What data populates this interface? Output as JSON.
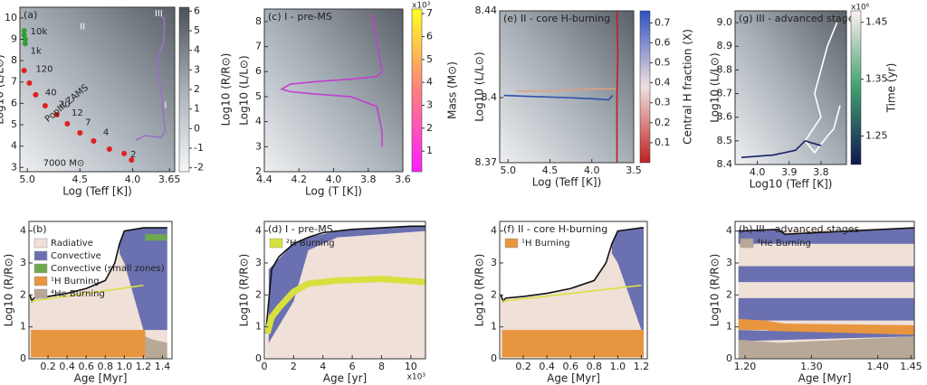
{
  "chart_data": [
    {
      "type": "line",
      "title": "(a)",
      "xlabel": "Log (Teff [K])",
      "ylabel": "Log10 (L/L⊙)",
      "xlim": [
        5.07,
        3.6
      ],
      "ylim": [
        2.8,
        10.5
      ],
      "xticks": [
        {
          "value": 5,
          "label": "5.0"
        },
        4.5,
        {
          "value": 4,
          "label": "4.0"
        },
        3.65
      ],
      "yticks": [
        3,
        4,
        5,
        6,
        7,
        8,
        9,
        10
      ],
      "colorbar": {
        "label": "Log10 (R/R⊙)",
        "lim": [
          -2.2,
          6.2
        ],
        "ticks": [
          -2,
          -1,
          0,
          1,
          2,
          3,
          4,
          5,
          6
        ],
        "colors": [
          "#f4f6f8",
          "#a8b0b8",
          "#4a5058"
        ]
      },
      "annotations": [
        "10k",
        "1k",
        "120",
        "40",
        "20",
        "12",
        "7",
        "4",
        "2",
        "PopIII ZAMS",
        "7000 M⊙",
        "I",
        "II",
        "III"
      ],
      "series": [
        {
          "kind": "line",
          "color": "#9a72c8",
          "x": [
            3.97,
            3.88,
            3.73,
            3.69,
            3.71,
            3.73,
            3.77,
            3.75,
            3.7,
            3.7,
            3.73
          ],
          "y": [
            4.28,
            4.49,
            4.41,
            4.7,
            5.55,
            6.61,
            7.67,
            8.3,
            8.93,
            9.99,
            10.08
          ]
        },
        {
          "kind": "points",
          "color": "#e02020",
          "x": [
            5.03,
            4.98,
            4.92,
            4.83,
            4.72,
            4.62,
            4.5,
            4.37,
            4.22,
            4.08,
            4.01
          ],
          "y": [
            7.54,
            6.95,
            6.4,
            5.89,
            5.47,
            5.04,
            4.62,
            4.24,
            3.86,
            3.65,
            3.35
          ]
        },
        {
          "kind": "points",
          "color": "#30a030",
          "x": [
            5.03,
            5.03,
            5.02,
            5.02
          ],
          "y": [
            9.4,
            9.2,
            9.0,
            8.8
          ]
        }
      ]
    },
    {
      "type": "line",
      "title": "(c) I - pre-MS",
      "xlabel": "Log (T [K])",
      "ylabel": "Log10 (L/L⊙)",
      "xlim": [
        4.4,
        3.6
      ],
      "ylim": [
        2,
        8.5
      ],
      "xticks": [
        4.4,
        4.2,
        {
          "value": 4,
          "label": "4.0"
        },
        3.8,
        3.6
      ],
      "yticks": [
        2,
        3,
        4,
        5,
        6,
        7,
        8
      ],
      "colorbar": {
        "label": "Mass (M⊙)",
        "multiplier": "x10³",
        "lim": [
          0.1,
          7.2
        ],
        "ticks": [
          1,
          2,
          3,
          4,
          5,
          6,
          7
        ],
        "colors": [
          "#ff20ff",
          "#ff8080",
          "#ffff20"
        ]
      },
      "series": [
        {
          "kind": "line",
          "color": "#c040d0",
          "x": [
            3.72,
            3.72,
            3.75,
            3.9,
            4.1,
            4.25,
            4.3,
            4.25,
            4.1,
            3.9,
            3.75,
            3.72,
            3.78
          ],
          "y": [
            3.0,
            3.6,
            4.6,
            5.0,
            5.1,
            5.2,
            5.3,
            5.5,
            5.6,
            5.7,
            5.8,
            6.0,
            8.3
          ]
        }
      ]
    },
    {
      "type": "line",
      "title": "(e) II - core H-burning",
      "xlabel": "Log (Teff [K])",
      "ylabel": "Log10 (L/L⊙)",
      "xlim": [
        5.1,
        3.5
      ],
      "ylim": [
        8.37,
        8.44
      ],
      "xticks": [
        {
          "value": 5,
          "label": "5.0"
        },
        4.5,
        {
          "value": 4,
          "label": "4.0"
        },
        3.5
      ],
      "yticks": [
        8.37,
        8.4,
        8.44
      ],
      "colorbar": {
        "label": "Central H fraction (X)",
        "lim": [
          0,
          0.76
        ],
        "ticks": [
          0.1,
          0.2,
          0.3,
          0.4,
          0.5,
          0.6,
          0.7
        ],
        "colors": [
          "#c02020",
          "#f0e0e0",
          "#3050c0"
        ]
      },
      "series": [
        {
          "kind": "line",
          "color": "#3050b0",
          "x": [
            5.05,
            4.7,
            4.3,
            4.0,
            3.8,
            3.75
          ],
          "y": [
            8.401,
            8.4005,
            8.4,
            8.3995,
            8.399,
            8.401
          ]
        },
        {
          "kind": "line",
          "color": "#e0a080",
          "x": [
            4.9,
            4.5,
            4.0,
            3.72
          ],
          "y": [
            8.403,
            8.403,
            8.404,
            8.404
          ]
        },
        {
          "kind": "line",
          "color": "#c02020",
          "x": [
            3.7,
            3.7,
            3.69,
            3.7
          ],
          "y": [
            8.37,
            8.4,
            8.42,
            8.44
          ]
        }
      ]
    },
    {
      "type": "line",
      "title": "(g) III - advanced stages",
      "xlabel": "Log10 (Teff [K])",
      "ylabel": "Log10 (L/L⊙)",
      "xlim": [
        4.07,
        3.72
      ],
      "ylim": [
        8.4,
        9.05
      ],
      "xticks": [
        {
          "value": 4,
          "label": "4.0"
        },
        3.9,
        3.8
      ],
      "yticks": [
        8.4,
        8.5,
        8.6,
        8.7,
        8.8,
        8.9,
        {
          "value": 9,
          "label": "9.0"
        }
      ],
      "colorbar": {
        "label": "Time (yr)",
        "multiplier": "x10⁶",
        "lim": [
          1.2,
          1.47
        ],
        "ticks": [
          1.25,
          1.35,
          1.45
        ],
        "colors": [
          "#101850",
          "#40a070",
          "#fff0f0"
        ]
      },
      "series": [
        {
          "kind": "line",
          "color": "#ffffff",
          "x": [
            3.75,
            3.78,
            3.8,
            3.82,
            3.8,
            3.85,
            3.82,
            3.78,
            3.76,
            3.74
          ],
          "y": [
            9.0,
            8.9,
            8.8,
            8.7,
            8.6,
            8.5,
            8.45,
            8.52,
            8.55,
            8.65
          ]
        },
        {
          "kind": "line",
          "color": "#182068",
          "x": [
            4.05,
            3.95,
            3.88,
            3.85,
            3.8
          ],
          "y": [
            8.43,
            8.44,
            8.46,
            8.5,
            8.48
          ]
        }
      ]
    },
    {
      "type": "line",
      "title": "(b)",
      "xlabel": "Age [Myr]",
      "ylabel": "Log10 (R/R⊙)",
      "xlim": [
        0,
        1.5
      ],
      "ylim": [
        0,
        4.3
      ],
      "xticks": [
        0.2,
        0.4,
        0.6,
        0.8,
        {
          "value": 1,
          "label": "1.0"
        },
        1.2,
        1.4
      ],
      "yticks": [
        0,
        1,
        2,
        3,
        4
      ],
      "series": [
        {
          "kind": "area",
          "name": "Radiative",
          "color": "#efe0d8",
          "x": [
            0.01,
            0.03,
            0.05,
            0.2,
            0.4,
            0.6,
            0.8,
            0.9,
            0.95,
            1.0,
            1.2,
            1.25,
            1.4,
            1.45
          ],
          "y": [
            2.0,
            1.8,
            1.9,
            1.95,
            2.05,
            2.2,
            2.45,
            3.0,
            3.6,
            4.0,
            4.1,
            4.1,
            4.1,
            4.1
          ],
          "y0": [
            0,
            0,
            0,
            0,
            0,
            0,
            0,
            0,
            0,
            0,
            0,
            0,
            0,
            0
          ]
        },
        {
          "kind": "area",
          "name": "Convective",
          "color": "#6a70b0",
          "x": [
            0.95,
            1.0,
            1.2,
            1.45
          ],
          "y": [
            3.6,
            4.0,
            4.1,
            4.1
          ],
          "y0": [
            3.3,
            3.0,
            0.9,
            0.9
          ]
        },
        {
          "kind": "area",
          "name": "Convective (small zones)",
          "color": "#70a850",
          "x": [
            1.22,
            1.3,
            1.45
          ],
          "y": [
            3.9,
            3.9,
            3.9
          ],
          "y0": [
            3.7,
            3.7,
            3.7
          ]
        },
        {
          "kind": "area",
          "name": "¹H Burning",
          "color": "#e89540",
          "x": [
            0.02,
            1.22
          ],
          "y": [
            0.9,
            0.9
          ],
          "y0": [
            0.05,
            0.05
          ]
        },
        {
          "kind": "area",
          "name": "⁴He Burning",
          "color": "#b8a898",
          "x": [
            1.22,
            1.3,
            1.45
          ],
          "y": [
            0.7,
            0.6,
            0.5
          ],
          "y0": [
            0,
            0,
            0
          ]
        },
        {
          "kind": "line",
          "color": "#111111",
          "x": [
            0.01,
            0.03,
            0.05,
            0.2,
            0.4,
            0.6,
            0.8,
            0.9,
            0.95,
            1.0,
            1.2,
            1.25,
            1.4,
            1.45
          ],
          "y": [
            2.0,
            1.8,
            1.9,
            1.95,
            2.05,
            2.2,
            2.45,
            3.0,
            3.6,
            4.0,
            4.1,
            4.1,
            4.1,
            4.1
          ]
        },
        {
          "kind": "line",
          "color": "#d8e040",
          "x": [
            0.02,
            1.2
          ],
          "y": [
            1.8,
            2.3
          ]
        }
      ]
    },
    {
      "type": "line",
      "title": "(d) I - pre-MS",
      "xlabel": "Age [yr]",
      "x_multiplier": "x10³",
      "ylabel": "Log10 (R/R⊙)",
      "xlim": [
        0,
        11
      ],
      "ylim": [
        0,
        4.3
      ],
      "xticks": [
        0,
        2,
        4,
        6,
        8,
        10
      ],
      "yticks": [
        0,
        1,
        2,
        3,
        4
      ],
      "series": [
        {
          "kind": "area",
          "color": "#efe0d8",
          "x": [
            0.1,
            0.5,
            1,
            2,
            3,
            4,
            6,
            8,
            10,
            11
          ],
          "y": [
            0.8,
            2.8,
            3.2,
            3.6,
            3.8,
            3.95,
            4.05,
            4.1,
            4.15,
            4.15
          ],
          "y0": [
            0,
            0,
            0,
            0,
            0,
            0,
            0,
            0,
            0,
            0
          ]
        },
        {
          "kind": "area",
          "color": "#6a70b0",
          "x": [
            0.3,
            2,
            3,
            5,
            8,
            11
          ],
          "y": [
            2.8,
            3.6,
            3.8,
            4.0,
            4.1,
            4.15
          ],
          "y0": [
            0.5,
            1.8,
            3.4,
            3.8,
            3.9,
            4.0
          ]
        },
        {
          "kind": "line",
          "color": "#111111",
          "x": [
            0.1,
            0.5,
            1,
            2,
            3,
            4,
            6,
            8,
            10,
            11
          ],
          "y": [
            0.8,
            2.8,
            3.2,
            3.6,
            3.8,
            3.95,
            4.05,
            4.1,
            4.15,
            4.15
          ]
        },
        {
          "kind": "line",
          "name": "²H Burning",
          "color": "#d8e040",
          "width": 7,
          "x": [
            0.2,
            0.5,
            1,
            2,
            3,
            5,
            8,
            11
          ],
          "y": [
            0.8,
            1.3,
            1.6,
            2.1,
            2.35,
            2.45,
            2.5,
            2.4
          ]
        }
      ]
    },
    {
      "type": "line",
      "title": "(f) II - core H-burning",
      "xlabel": "Age [Myr]",
      "ylabel": "Log10 (R/R⊙)",
      "xlim": [
        0,
        1.25
      ],
      "ylim": [
        0,
        4.3
      ],
      "xticks": [
        0.2,
        0.4,
        0.6,
        0.8,
        {
          "value": 1,
          "label": "1.0"
        },
        1.2
      ],
      "yticks": [
        0,
        1,
        2,
        3,
        4
      ],
      "series": [
        {
          "kind": "area",
          "color": "#efe0d8",
          "x": [
            0.01,
            0.03,
            0.05,
            0.2,
            0.4,
            0.6,
            0.8,
            0.9,
            0.95,
            1.0,
            1.2,
            1.22
          ],
          "y": [
            2.0,
            1.8,
            1.9,
            1.95,
            2.05,
            2.2,
            2.45,
            3.0,
            3.6,
            4.0,
            4.1,
            4.1
          ],
          "y0": [
            0,
            0,
            0,
            0,
            0,
            0,
            0,
            0,
            0,
            0,
            0,
            0
          ]
        },
        {
          "kind": "area",
          "color": "#6a70b0",
          "x": [
            0.95,
            1.0,
            1.2,
            1.22
          ],
          "y": [
            3.6,
            4.0,
            4.1,
            4.1
          ],
          "y0": [
            3.3,
            3.0,
            0.9,
            0.9
          ]
        },
        {
          "kind": "area",
          "name": "¹H Burning",
          "color": "#e89540",
          "x": [
            0.02,
            1.22
          ],
          "y": [
            0.9,
            0.9
          ],
          "y0": [
            0.05,
            0.05
          ]
        },
        {
          "kind": "line",
          "color": "#111111",
          "x": [
            0.01,
            0.03,
            0.05,
            0.2,
            0.4,
            0.6,
            0.8,
            0.9,
            0.95,
            1.0,
            1.2,
            1.22
          ],
          "y": [
            2.0,
            1.8,
            1.9,
            1.95,
            2.05,
            2.2,
            2.45,
            3.0,
            3.6,
            4.0,
            4.1,
            4.1
          ]
        },
        {
          "kind": "line",
          "color": "#d8e040",
          "x": [
            0.02,
            1.2
          ],
          "y": [
            1.8,
            2.3
          ]
        }
      ]
    },
    {
      "type": "line",
      "title": "(h) III - advanced stages",
      "xlabel": "Age [Myr]",
      "ylabel": "Log10 (R/R⊙)",
      "xlim": [
        1.185,
        1.455
      ],
      "ylim": [
        0,
        4.3
      ],
      "xticks": [
        {
          "value": 1.2,
          "label": "1.20"
        },
        {
          "value": 1.3,
          "label": "1.30"
        },
        {
          "value": 1.4,
          "label": "1.40"
        },
        1.45
      ],
      "yticks": [
        0,
        1,
        2,
        3,
        4
      ],
      "series": [
        {
          "kind": "area",
          "color": "#efe0d8",
          "x": [
            1.19,
            1.455
          ],
          "y": [
            4.0,
            4.1
          ],
          "y0": [
            0,
            0
          ]
        },
        {
          "kind": "area",
          "color": "#6a70b0",
          "x": [
            1.19,
            1.25,
            1.26,
            1.455
          ],
          "y": [
            4.0,
            4.05,
            3.9,
            4.1
          ],
          "y0": [
            3.6,
            3.6,
            3.6,
            3.6
          ]
        },
        {
          "kind": "area",
          "color": "#6a70b0",
          "x": [
            1.19,
            1.455
          ],
          "y": [
            2.9,
            2.9
          ],
          "y0": [
            2.4,
            2.4
          ]
        },
        {
          "kind": "area",
          "color": "#6a70b0",
          "x": [
            1.19,
            1.455
          ],
          "y": [
            1.9,
            1.9
          ],
          "y0": [
            1.2,
            1.2
          ]
        },
        {
          "kind": "area",
          "color": "#e89540",
          "x": [
            1.19,
            1.23,
            1.26,
            1.455
          ],
          "y": [
            1.25,
            1.2,
            1.1,
            1.05
          ],
          "y0": [
            0.9,
            0.9,
            0.8,
            0.75
          ]
        },
        {
          "kind": "area",
          "color": "#6a70b0",
          "x": [
            1.19,
            1.455
          ],
          "y": [
            0.9,
            0.75
          ],
          "y0": [
            0.55,
            0.7
          ]
        },
        {
          "kind": "area",
          "name": "⁴He Burning",
          "color": "#b8a898",
          "x": [
            1.19,
            1.25,
            1.455
          ],
          "y": [
            0.6,
            0.5,
            0.7
          ],
          "y0": [
            0,
            0,
            0
          ]
        },
        {
          "kind": "line",
          "color": "#111111",
          "x": [
            1.19,
            1.25,
            1.26,
            1.455
          ],
          "y": [
            4.0,
            4.05,
            3.9,
            4.1
          ]
        }
      ]
    }
  ]
}
